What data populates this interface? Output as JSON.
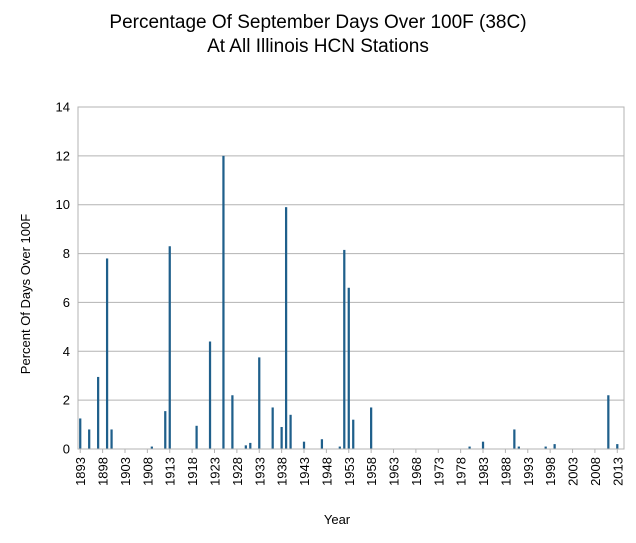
{
  "chart_data": {
    "type": "bar",
    "title_line1": "Percentage Of September Days Over 100F (38C)",
    "title_line2": "At All Illinois HCN Stations",
    "xlabel": "Year",
    "ylabel": "Percent Of Days Over 100F",
    "ylim": [
      0,
      14
    ],
    "yticks": [
      0,
      2,
      4,
      6,
      8,
      10,
      12,
      14
    ],
    "xticks": [
      1893,
      1898,
      1903,
      1908,
      1913,
      1918,
      1923,
      1928,
      1933,
      1938,
      1943,
      1948,
      1953,
      1958,
      1963,
      1968,
      1973,
      1978,
      1983,
      1988,
      1993,
      1998,
      2003,
      2008,
      2013
    ],
    "year_start": 1893,
    "year_end": 2014,
    "grid": true,
    "bar_color": "#1f5f8b",
    "x": [
      1893,
      1895,
      1897,
      1899,
      1900,
      1909,
      1912,
      1913,
      1919,
      1922,
      1925,
      1927,
      1930,
      1931,
      1933,
      1936,
      1938,
      1939,
      1940,
      1943,
      1947,
      1951,
      1952,
      1953,
      1954,
      1958,
      1980,
      1983,
      1990,
      1991,
      1997,
      1999,
      2011,
      2013
    ],
    "values": [
      1.25,
      0.8,
      2.95,
      7.8,
      0.8,
      0.1,
      1.55,
      8.3,
      0.95,
      4.4,
      12.0,
      2.2,
      0.15,
      0.25,
      3.75,
      1.7,
      0.9,
      9.9,
      1.4,
      0.3,
      0.4,
      0.1,
      8.15,
      6.6,
      1.2,
      1.7,
      0.1,
      0.3,
      0.8,
      0.1,
      0.1,
      0.2,
      2.2,
      0.2
    ]
  }
}
